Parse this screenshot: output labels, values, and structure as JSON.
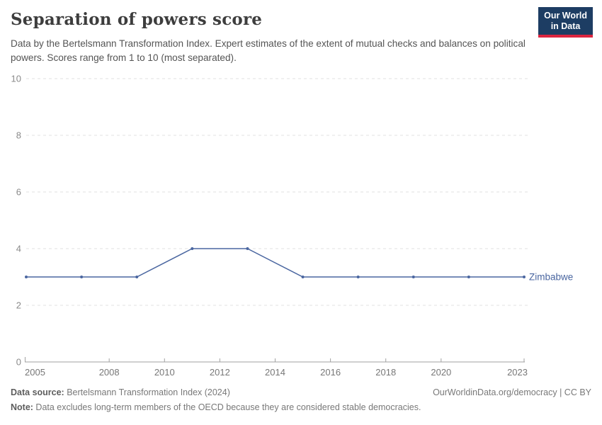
{
  "header": {
    "title": "Separation of powers score",
    "subtitle": "Data by the Bertelsmann Transformation Index. Expert estimates of the extent of mutual checks and balances on political powers. Scores range from 1 to 10 (most separated).",
    "logo": {
      "line1": "Our World",
      "line2": "in Data",
      "bg_color": "#1d3d63",
      "accent_color": "#dc2540"
    }
  },
  "chart_data": {
    "type": "line",
    "title": "Separation of powers score",
    "x": [
      2005,
      2007,
      2009,
      2011,
      2013,
      2015,
      2017,
      2019,
      2021,
      2023
    ],
    "series": [
      {
        "name": "Zimbabwe",
        "color": "#4a66a0",
        "values": [
          3,
          3,
          3,
          4,
          4,
          3,
          3,
          3,
          3,
          3
        ]
      }
    ],
    "xlabel": "",
    "ylabel": "",
    "xlim": [
      2005,
      2023
    ],
    "ylim": [
      0,
      10
    ],
    "yticks": [
      0,
      2,
      4,
      6,
      8,
      10
    ],
    "xticks": [
      2005,
      2008,
      2010,
      2012,
      2014,
      2016,
      2018,
      2020,
      2023
    ],
    "grid": "horizontal-dashed",
    "gridline_color": "#e0e0e0",
    "axis_color": "#a1a1a1",
    "tick_label_color": "#8a8a8a",
    "legend_position": "end-of-line-label"
  },
  "footer": {
    "source_label": "Data source:",
    "source_text": " Bertelsmann Transformation Index (2024)",
    "rights": "OurWorldinData.org/democracy | CC BY",
    "note_label": "Note:",
    "note_text": " Data excludes long-term members of the OECD because they are considered stable democracies."
  }
}
